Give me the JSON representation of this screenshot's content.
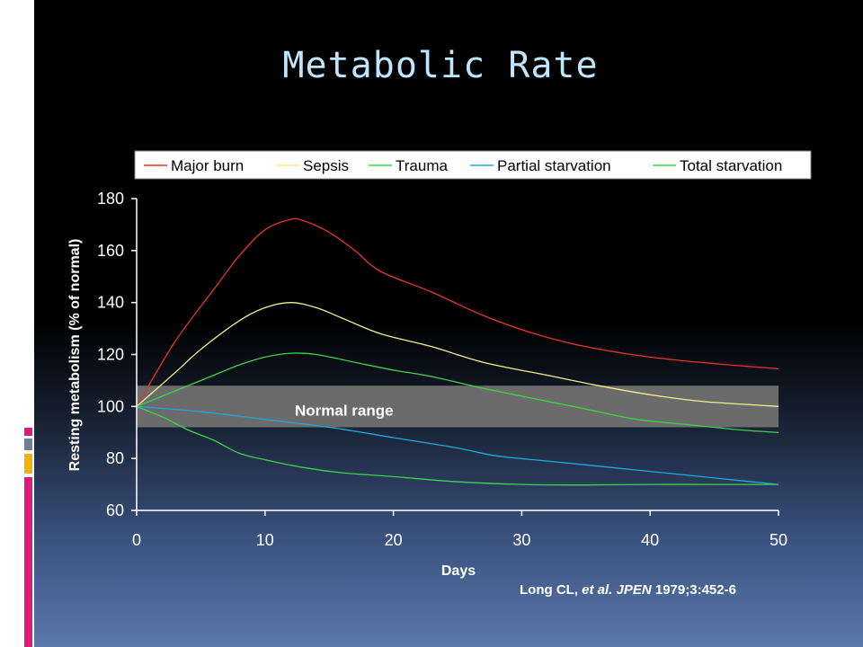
{
  "slide": {
    "title": "Metabolic Rate",
    "citation": {
      "authors": "Long CL,",
      "etal": "et al.",
      "journal": "JPEN",
      "ref": "1979;3:452-6"
    },
    "accent_colors": [
      "#e0197d",
      "#6f7f8f",
      "#f0b400",
      "#e0197d"
    ]
  },
  "chart_data": {
    "type": "line",
    "title": "",
    "xlabel": "Days",
    "ylabel": "Resting metabolism (% of normal)",
    "xlim": [
      0,
      50
    ],
    "ylim": [
      60,
      180
    ],
    "xticks": [
      0,
      10,
      20,
      30,
      40,
      50
    ],
    "yticks": [
      60,
      80,
      100,
      120,
      140,
      160,
      180
    ],
    "grid": false,
    "legend": "top",
    "band": {
      "label": "Normal range",
      "y_range": [
        92,
        108
      ],
      "color": "#6b6b6b"
    },
    "series": [
      {
        "name": "Major burn",
        "color": "#e8352a",
        "points": [
          [
            0,
            100
          ],
          [
            3,
            125
          ],
          [
            6,
            145
          ],
          [
            8,
            158
          ],
          [
            10,
            168
          ],
          [
            12,
            172
          ],
          [
            13,
            171.5
          ],
          [
            15,
            167
          ],
          [
            17,
            160
          ],
          [
            19,
            152
          ],
          [
            23,
            144
          ],
          [
            27,
            135
          ],
          [
            31,
            128
          ],
          [
            35,
            123
          ],
          [
            40,
            119
          ],
          [
            45,
            116.5
          ],
          [
            50,
            114.5
          ]
        ]
      },
      {
        "name": "Sepsis",
        "color": "#f2f08a",
        "points": [
          [
            0,
            100
          ],
          [
            3,
            113
          ],
          [
            5,
            122
          ],
          [
            8,
            133
          ],
          [
            10,
            138
          ],
          [
            12,
            140
          ],
          [
            14,
            138
          ],
          [
            16,
            134
          ],
          [
            19,
            128
          ],
          [
            23,
            123
          ],
          [
            27,
            117
          ],
          [
            32,
            112
          ],
          [
            36,
            108
          ],
          [
            40,
            104.5
          ],
          [
            44,
            102
          ],
          [
            50,
            100
          ]
        ]
      },
      {
        "name": "Trauma",
        "color": "#3cd24a",
        "points": [
          [
            0,
            100
          ],
          [
            3,
            106
          ],
          [
            6,
            112
          ],
          [
            8,
            116
          ],
          [
            10,
            119
          ],
          [
            12,
            120.5
          ],
          [
            14,
            120
          ],
          [
            17,
            117
          ],
          [
            20,
            114
          ],
          [
            23,
            111.5
          ],
          [
            27,
            107
          ],
          [
            31,
            103
          ],
          [
            35,
            99
          ],
          [
            39,
            95
          ],
          [
            43,
            93
          ],
          [
            47,
            91
          ],
          [
            50,
            90
          ]
        ]
      },
      {
        "name": "Partial starvation",
        "color": "#1ca9d8",
        "points": [
          [
            0,
            100
          ],
          [
            5,
            98
          ],
          [
            10,
            95
          ],
          [
            15,
            92
          ],
          [
            20,
            88
          ],
          [
            25,
            84
          ],
          [
            28,
            81
          ],
          [
            32,
            79
          ],
          [
            36,
            77
          ],
          [
            40,
            75
          ],
          [
            45,
            72.5
          ],
          [
            50,
            70
          ]
        ]
      },
      {
        "name": "Total starvation",
        "color": "#3cd24a",
        "points": [
          [
            0,
            100
          ],
          [
            2,
            96
          ],
          [
            4,
            91
          ],
          [
            6,
            87
          ],
          [
            8,
            82
          ],
          [
            10,
            79.5
          ],
          [
            13,
            76.5
          ],
          [
            16,
            74.5
          ],
          [
            20,
            73
          ],
          [
            25,
            71
          ],
          [
            30,
            70
          ],
          [
            35,
            69.8
          ],
          [
            40,
            70
          ],
          [
            45,
            70
          ],
          [
            50,
            70
          ]
        ]
      }
    ]
  }
}
